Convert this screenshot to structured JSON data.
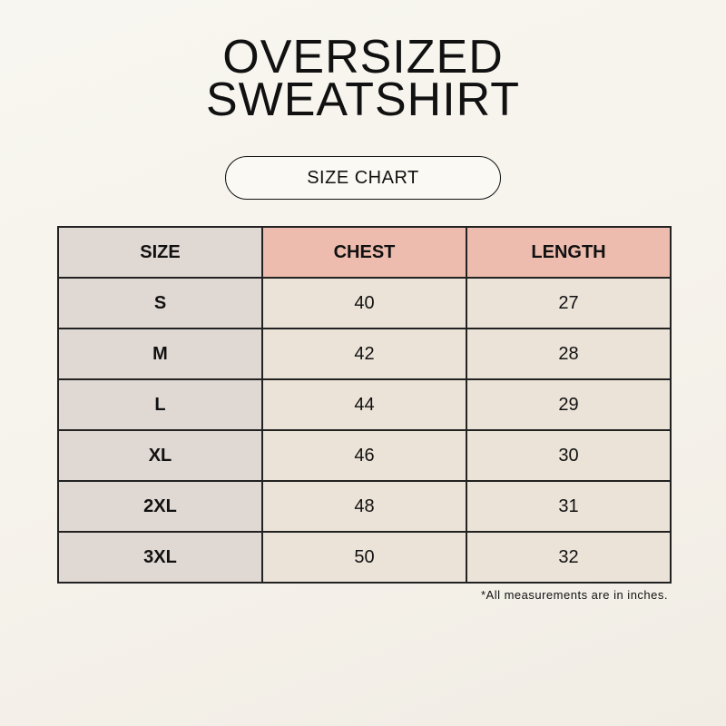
{
  "title": [
    "OVERSIZED",
    "SWEATSHIRT"
  ],
  "subtitle": "SIZE CHART",
  "table": {
    "headers": [
      "SIZE",
      "CHEST",
      "LENGTH"
    ],
    "rows": [
      [
        "S",
        "40",
        "27"
      ],
      [
        "M",
        "42",
        "28"
      ],
      [
        "L",
        "44",
        "29"
      ],
      [
        "XL",
        "46",
        "30"
      ],
      [
        "2XL",
        "48",
        "31"
      ],
      [
        "3XL",
        "50",
        "32"
      ]
    ]
  },
  "note": "*All measurements are in inches.",
  "colors": {
    "size_col": "#e0d8d3",
    "header": "#edbcae",
    "cells": "#ebe3d8"
  }
}
